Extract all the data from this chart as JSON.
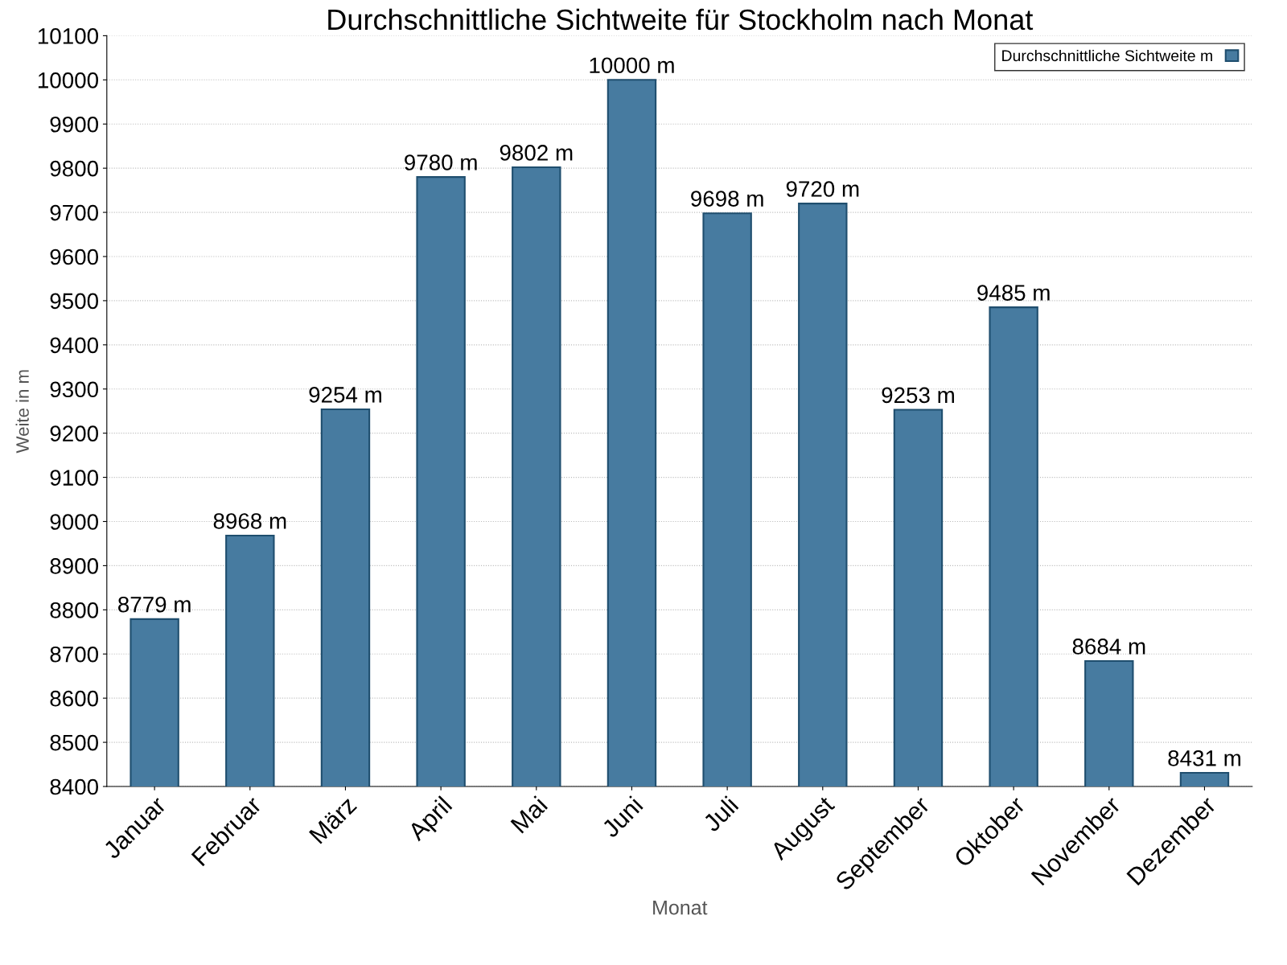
{
  "chart_data": {
    "type": "bar",
    "title": "Durchschnittliche Sichtweite für Stockholm nach Monat",
    "xlabel": "Monat",
    "ylabel": "Weite in m",
    "categories": [
      "Januar",
      "Februar",
      "März",
      "April",
      "Mai",
      "Juni",
      "Juli",
      "August",
      "September",
      "Oktober",
      "November",
      "Dezember"
    ],
    "series": [
      {
        "name": "Durchschnittliche Sichtweite m",
        "color": "#477ba0",
        "values": [
          8779,
          8968,
          9254,
          9780,
          9802,
          10000,
          9698,
          9720,
          9253,
          9485,
          8684,
          8431
        ],
        "value_labels": [
          "8779 m",
          "8968 m",
          "9254 m",
          "9780 m",
          "9802 m",
          "10000 m",
          "9698 m",
          "9720 m",
          "9253 m",
          "9485 m",
          "8684 m",
          "8431 m"
        ]
      }
    ],
    "ylim": [
      8400,
      10100
    ],
    "yticks": [
      8400,
      8500,
      8600,
      8700,
      8800,
      8900,
      9000,
      9100,
      9200,
      9300,
      9400,
      9500,
      9600,
      9700,
      9800,
      9900,
      10000,
      10100
    ],
    "grid": "y",
    "legend": "top right"
  }
}
